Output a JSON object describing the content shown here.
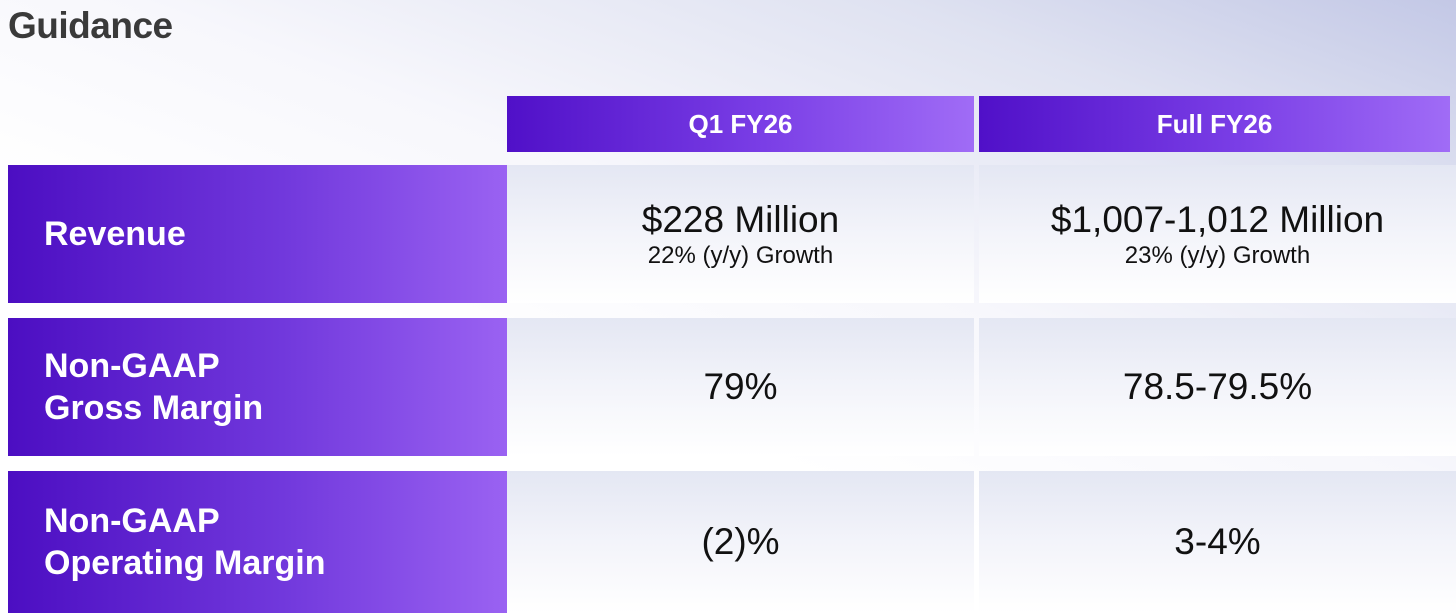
{
  "title": "Guidance",
  "columns": [
    "Q1 FY26",
    "Full FY26"
  ],
  "rows": [
    {
      "label_lines": [
        "Revenue"
      ],
      "q1": {
        "value": "$228 Million",
        "sub": "22% (y/y) Growth"
      },
      "fy": {
        "value": "$1,007-1,012 Million",
        "sub": "23% (y/y) Growth"
      }
    },
    {
      "label_lines": [
        "Non-GAAP",
        "Gross Margin"
      ],
      "q1": {
        "value": "79%"
      },
      "fy": {
        "value": "78.5-79.5%"
      }
    },
    {
      "label_lines": [
        "Non-GAAP",
        "Operating Margin"
      ],
      "q1": {
        "value": "(2)%"
      },
      "fy": {
        "value": "3-4%"
      }
    }
  ],
  "colors": {
    "header_purple_dark": "#5010c8",
    "header_purple_light": "#a06cf6",
    "title_text": "#3a3a3a"
  }
}
